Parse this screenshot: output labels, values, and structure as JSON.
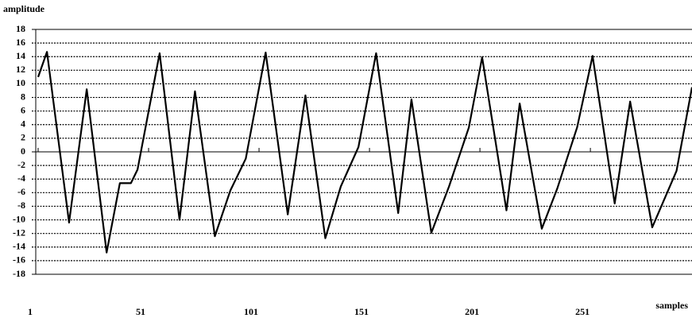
{
  "chart_data": {
    "type": "line",
    "y_label": "amplitude",
    "x_label": "samples",
    "x": [
      1,
      5,
      15,
      23,
      32,
      38,
      43,
      46,
      56,
      65,
      72,
      81,
      88,
      95,
      104,
      114,
      122,
      131,
      138,
      146,
      154,
      164,
      170,
      179,
      187,
      196,
      202,
      213,
      219,
      229,
      236,
      245,
      252,
      262,
      269,
      279,
      290,
      297
    ],
    "series": [
      {
        "name": "amplitude",
        "color": "#000000",
        "values": [
          11,
          14.7,
          -10.4,
          9.2,
          -14.8,
          -4.6,
          -4.6,
          -2.6,
          14.5,
          -10,
          8.9,
          -12.4,
          -5.7,
          -1,
          14.6,
          -9.2,
          8.3,
          -12.7,
          -5.1,
          0.7,
          14.5,
          -9,
          7.7,
          -11.9,
          -5.1,
          3.6,
          13.9,
          -8.6,
          7.1,
          -11.3,
          -5.4,
          3.6,
          14.1,
          -7.6,
          7.4,
          -11.1,
          -2.8,
          9.5
        ]
      }
    ],
    "xlim": [
      1,
      297
    ],
    "xticks": [
      1,
      51,
      101,
      151,
      201,
      251
    ],
    "ylim": [
      -18,
      18
    ],
    "yticks": [
      18,
      16,
      14,
      12,
      10,
      8,
      6,
      4,
      2,
      0,
      -2,
      -4,
      -6,
      -8,
      -10,
      -12,
      -14,
      -16,
      -18
    ],
    "grid": true
  }
}
